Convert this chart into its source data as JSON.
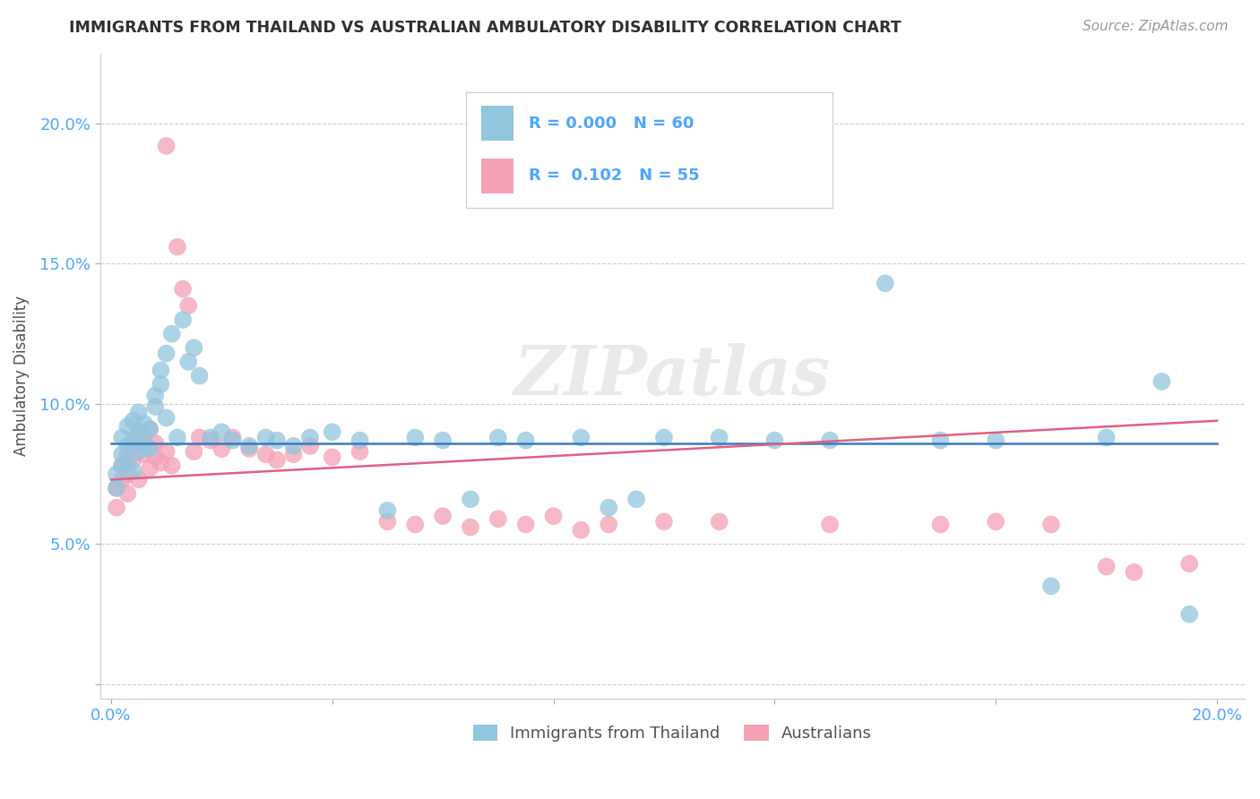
{
  "title": "IMMIGRANTS FROM THAILAND VS AUSTRALIAN AMBULATORY DISABILITY CORRELATION CHART",
  "source": "Source: ZipAtlas.com",
  "ylabel": "Ambulatory Disability",
  "watermark": "ZIPatlas",
  "legend_blue_r": "0.000",
  "legend_blue_n": "60",
  "legend_pink_r": "0.102",
  "legend_pink_n": "55",
  "legend_label_blue": "Immigrants from Thailand",
  "legend_label_pink": "Australians",
  "x_ticks": [
    0.0,
    0.04,
    0.08,
    0.12,
    0.16,
    0.2
  ],
  "x_tick_labels": [
    "0.0%",
    "",
    "",
    "",
    "",
    "20.0%"
  ],
  "y_ticks": [
    0.0,
    0.05,
    0.1,
    0.15,
    0.2
  ],
  "y_tick_labels": [
    "",
    "5.0%",
    "10.0%",
    "15.0%",
    "20.0%"
  ],
  "xlim": [
    -0.002,
    0.205
  ],
  "ylim": [
    -0.005,
    0.225
  ],
  "blue_color": "#92c5de",
  "pink_color": "#f4a0b5",
  "blue_line_color": "#3a7bbf",
  "pink_line_color": "#e06080",
  "title_color": "#303030",
  "axis_label_color": "#505050",
  "tick_color": "#4da6ff",
  "grid_color": "#cccccc",
  "background_color": "#ffffff",
  "blue_scatter_x": [
    0.001,
    0.001,
    0.002,
    0.002,
    0.002,
    0.003,
    0.003,
    0.003,
    0.004,
    0.004,
    0.004,
    0.005,
    0.005,
    0.005,
    0.006,
    0.006,
    0.007,
    0.007,
    0.008,
    0.008,
    0.009,
    0.009,
    0.01,
    0.01,
    0.011,
    0.012,
    0.013,
    0.014,
    0.015,
    0.016,
    0.018,
    0.02,
    0.022,
    0.025,
    0.028,
    0.03,
    0.033,
    0.036,
    0.04,
    0.045,
    0.05,
    0.055,
    0.06,
    0.065,
    0.07,
    0.075,
    0.085,
    0.09,
    0.095,
    0.1,
    0.11,
    0.12,
    0.13,
    0.14,
    0.15,
    0.16,
    0.17,
    0.18,
    0.19,
    0.195
  ],
  "blue_scatter_y": [
    0.075,
    0.07,
    0.082,
    0.088,
    0.078,
    0.085,
    0.092,
    0.079,
    0.087,
    0.094,
    0.076,
    0.09,
    0.083,
    0.097,
    0.086,
    0.093,
    0.091,
    0.084,
    0.099,
    0.103,
    0.112,
    0.107,
    0.095,
    0.118,
    0.125,
    0.088,
    0.13,
    0.115,
    0.12,
    0.11,
    0.088,
    0.09,
    0.087,
    0.085,
    0.088,
    0.087,
    0.085,
    0.088,
    0.09,
    0.087,
    0.062,
    0.088,
    0.087,
    0.066,
    0.088,
    0.087,
    0.088,
    0.063,
    0.066,
    0.088,
    0.088,
    0.087,
    0.087,
    0.143,
    0.087,
    0.087,
    0.035,
    0.088,
    0.108,
    0.025
  ],
  "pink_scatter_x": [
    0.001,
    0.001,
    0.002,
    0.002,
    0.003,
    0.003,
    0.003,
    0.004,
    0.004,
    0.005,
    0.005,
    0.005,
    0.006,
    0.006,
    0.007,
    0.007,
    0.008,
    0.008,
    0.009,
    0.01,
    0.01,
    0.011,
    0.012,
    0.013,
    0.014,
    0.015,
    0.016,
    0.018,
    0.02,
    0.022,
    0.025,
    0.028,
    0.03,
    0.033,
    0.036,
    0.04,
    0.045,
    0.05,
    0.055,
    0.06,
    0.065,
    0.07,
    0.075,
    0.08,
    0.085,
    0.09,
    0.1,
    0.11,
    0.13,
    0.15,
    0.16,
    0.17,
    0.18,
    0.185,
    0.195
  ],
  "pink_scatter_y": [
    0.07,
    0.063,
    0.078,
    0.073,
    0.082,
    0.075,
    0.068,
    0.086,
    0.08,
    0.09,
    0.085,
    0.073,
    0.088,
    0.082,
    0.091,
    0.077,
    0.086,
    0.081,
    0.079,
    0.192,
    0.083,
    0.078,
    0.156,
    0.141,
    0.135,
    0.083,
    0.088,
    0.087,
    0.084,
    0.088,
    0.084,
    0.082,
    0.08,
    0.082,
    0.085,
    0.081,
    0.083,
    0.058,
    0.057,
    0.06,
    0.056,
    0.059,
    0.057,
    0.06,
    0.055,
    0.057,
    0.058,
    0.058,
    0.057,
    0.057,
    0.058,
    0.057,
    0.042,
    0.04,
    0.043
  ],
  "blue_line_y_start": 0.086,
  "blue_line_y_end": 0.086,
  "pink_line_y_start": 0.073,
  "pink_line_y_end": 0.094
}
